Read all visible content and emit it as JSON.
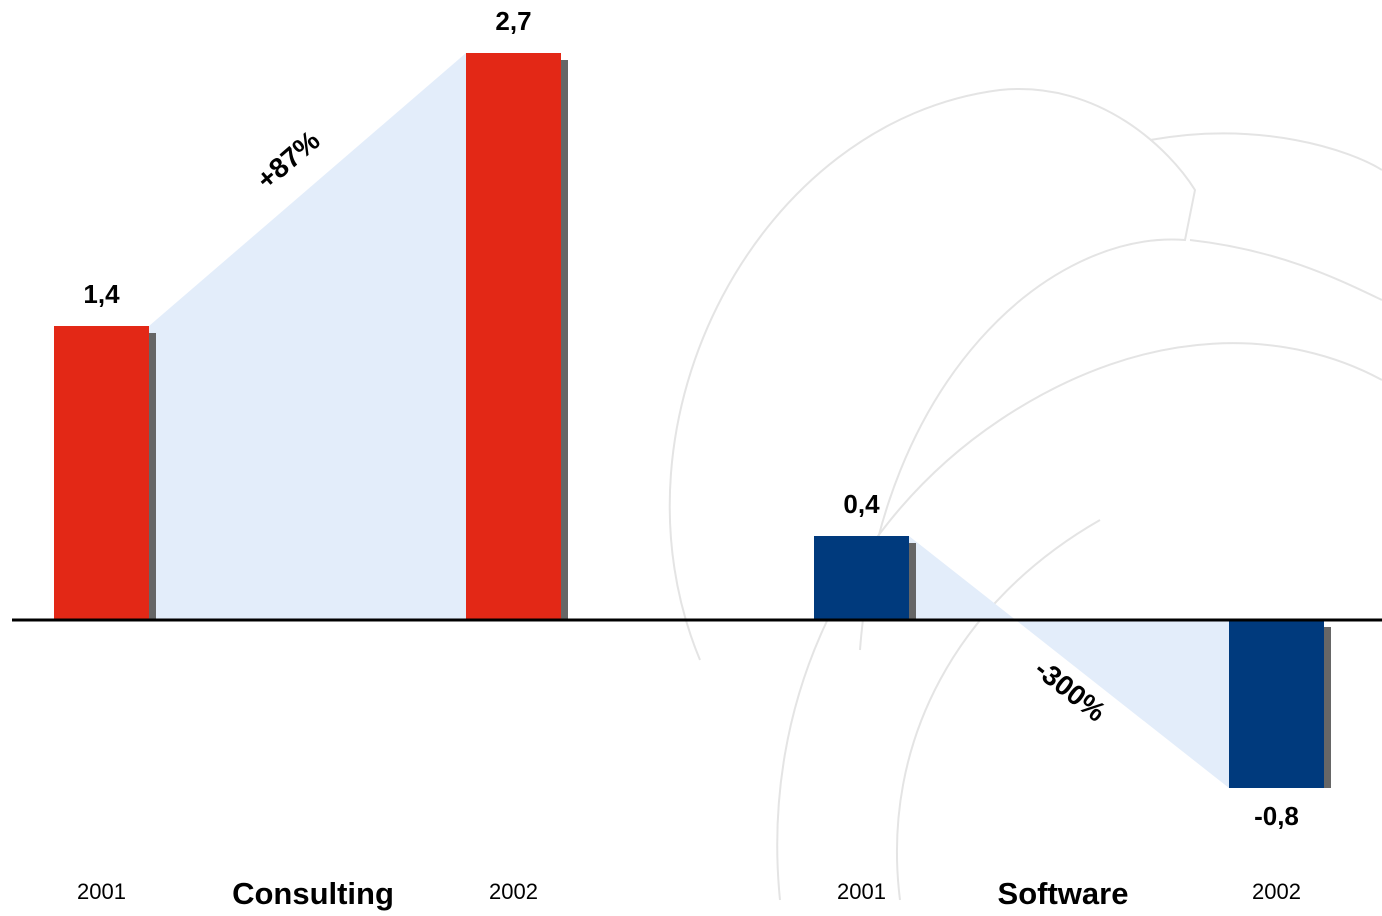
{
  "chart_data": {
    "type": "bar",
    "ylim": [
      -0.9,
      2.8
    ],
    "groups": [
      {
        "name": "Consulting",
        "color": "#e32816",
        "categories": [
          "2001",
          "2002"
        ],
        "values": [
          1.4,
          2.7
        ],
        "value_labels": [
          "1,4",
          "2,7"
        ],
        "change": "+87%"
      },
      {
        "name": "Software",
        "color": "#003a7d",
        "categories": [
          "2001",
          "2002"
        ],
        "values": [
          0.4,
          -0.8
        ],
        "value_labels": [
          "0,4",
          "-0,8"
        ],
        "change": "-300%"
      }
    ]
  }
}
